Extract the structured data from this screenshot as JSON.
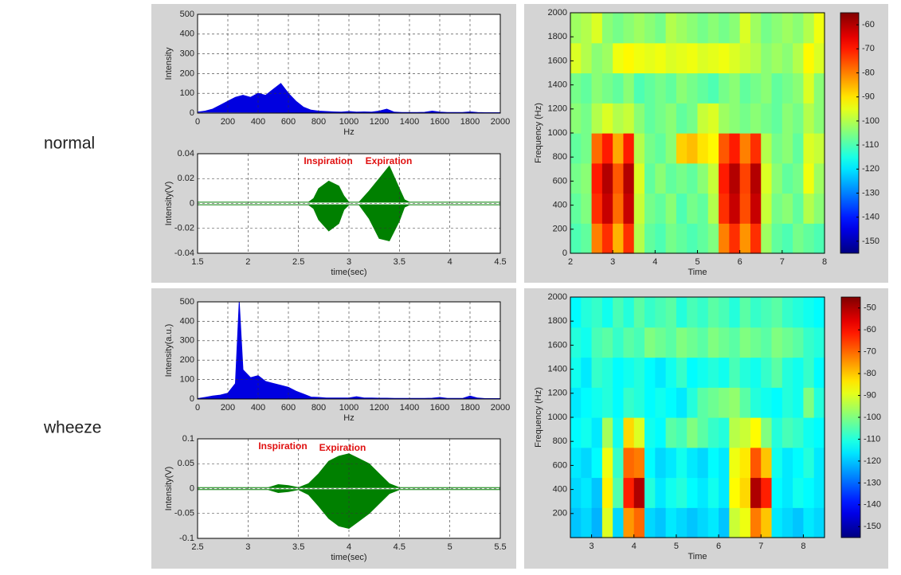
{
  "row_labels": [
    "normal",
    "wheeze"
  ],
  "chart_data": [
    {
      "type": "spectrum",
      "xlabel": "Hz",
      "ylabel": "Intensity",
      "color": "#0000e0",
      "grid": true,
      "xlim": [
        0,
        2000
      ],
      "xticks": [
        0,
        200,
        400,
        600,
        800,
        1000,
        1200,
        1400,
        1600,
        1800,
        2000
      ],
      "ylim": [
        0,
        500
      ],
      "yticks": [
        0,
        100,
        200,
        300,
        400,
        500
      ],
      "x": [
        0,
        50,
        100,
        150,
        200,
        250,
        300,
        350,
        400,
        450,
        500,
        550,
        600,
        650,
        700,
        750,
        800,
        850,
        900,
        950,
        1000,
        1050,
        1100,
        1150,
        1200,
        1250,
        1300,
        1350,
        1400,
        1450,
        1500,
        1550,
        1600,
        1650,
        1700,
        1750,
        1800,
        1850,
        1900,
        1950,
        2000
      ],
      "values": [
        5,
        10,
        20,
        40,
        60,
        80,
        90,
        80,
        100,
        90,
        120,
        150,
        100,
        60,
        30,
        15,
        10,
        8,
        6,
        5,
        8,
        5,
        6,
        5,
        10,
        20,
        5,
        3,
        3,
        3,
        4,
        10,
        5,
        3,
        3,
        3,
        6,
        3,
        2,
        2,
        2
      ]
    },
    {
      "type": "envelope",
      "xlabel": "time(sec)",
      "ylabel": "Intensity(V)",
      "color": "#008000",
      "grid": true,
      "xlim": [
        1.5,
        4.5
      ],
      "xticks": [
        1.5,
        2,
        2.5,
        3,
        3.5,
        4,
        4.5
      ],
      "ylim": [
        -0.04,
        0.04
      ],
      "yticks": [
        -0.04,
        -0.02,
        0,
        0.02,
        0.04
      ],
      "annotations": [
        "Inspiration",
        "Expiration"
      ],
      "x": [
        1.5,
        2.0,
        2.5,
        2.6,
        2.65,
        2.7,
        2.8,
        2.9,
        2.95,
        3.0,
        3.1,
        3.2,
        3.3,
        3.4,
        3.5,
        3.55,
        3.6,
        4.0,
        4.5
      ],
      "upper": [
        0.001,
        0.001,
        0.001,
        0.001,
        0.004,
        0.012,
        0.018,
        0.014,
        0.006,
        0.001,
        0.001,
        0.01,
        0.02,
        0.03,
        0.012,
        0.003,
        0.001,
        0.001,
        0.001
      ],
      "lower": [
        -0.001,
        -0.001,
        -0.001,
        -0.001,
        -0.004,
        -0.013,
        -0.022,
        -0.016,
        -0.005,
        -0.001,
        -0.001,
        -0.012,
        -0.028,
        -0.03,
        -0.014,
        -0.003,
        -0.001,
        -0.001,
        -0.001
      ]
    },
    {
      "type": "heatmap",
      "xlabel": "Time",
      "ylabel": "Frequency (Hz)",
      "colormap": "jet",
      "grid": false,
      "xlim": [
        2,
        8
      ],
      "xticks": [
        2,
        3,
        4,
        5,
        6,
        7,
        8
      ],
      "ylim": [
        0,
        2000
      ],
      "yticks": [
        0,
        200,
        400,
        600,
        800,
        1000,
        1200,
        1400,
        1600,
        1800,
        2000
      ],
      "clim": [
        -155,
        -55
      ],
      "cticks": [
        -60,
        -70,
        -80,
        -90,
        -100,
        -110,
        -120,
        -130,
        -140,
        -150
      ],
      "z": [
        [
          -110,
          -108,
          -80,
          -72,
          -85,
          -72,
          -100,
          -108,
          -110,
          -106,
          -108,
          -110,
          -108,
          -105,
          -80,
          -72,
          -82,
          -72,
          -102,
          -108,
          -110,
          -106,
          -108,
          -110
        ],
        [
          -108,
          -105,
          -72,
          -62,
          -78,
          -62,
          -98,
          -106,
          -108,
          -104,
          -110,
          -106,
          -108,
          -100,
          -72,
          -62,
          -75,
          -62,
          -98,
          -106,
          -104,
          -108,
          -100,
          -104
        ],
        [
          -106,
          -104,
          -70,
          -60,
          -76,
          -60,
          -96,
          -108,
          -104,
          -108,
          -106,
          -108,
          -104,
          -98,
          -70,
          -60,
          -74,
          -60,
          -96,
          -104,
          -108,
          -106,
          -94,
          -102
        ],
        [
          -108,
          -106,
          -78,
          -70,
          -84,
          -70,
          -100,
          -106,
          -108,
          -104,
          -88,
          -86,
          -90,
          -92,
          -76,
          -70,
          -80,
          -72,
          -100,
          -106,
          -104,
          -108,
          -96,
          -98
        ],
        [
          -104,
          -106,
          -100,
          -96,
          -100,
          -98,
          -104,
          -108,
          -106,
          -104,
          -108,
          -106,
          -98,
          -96,
          -102,
          -104,
          -106,
          -104,
          -106,
          -108,
          -104,
          -106,
          -100,
          -104
        ],
        [
          -106,
          -108,
          -104,
          -106,
          -108,
          -104,
          -110,
          -108,
          -106,
          -108,
          -104,
          -106,
          -108,
          -110,
          -106,
          -104,
          -108,
          -106,
          -104,
          -108,
          -106,
          -104,
          -96,
          -104
        ],
        [
          -96,
          -100,
          -104,
          -102,
          -94,
          -92,
          -94,
          -95,
          -94,
          -96,
          -95,
          -94,
          -96,
          -95,
          -94,
          -96,
          -98,
          -100,
          -104,
          -102,
          -104,
          -100,
          -92,
          -96
        ],
        [
          -102,
          -100,
          -96,
          -104,
          -106,
          -104,
          -102,
          -104,
          -106,
          -100,
          -102,
          -104,
          -106,
          -104,
          -106,
          -104,
          -96,
          -102,
          -106,
          -104,
          -102,
          -104,
          -100,
          -94
        ]
      ]
    },
    {
      "type": "spectrum",
      "xlabel": "Hz",
      "ylabel": "Intensity(a.u.)",
      "color": "#0000e0",
      "grid": true,
      "xlim": [
        0,
        2000
      ],
      "xticks": [
        0,
        200,
        400,
        600,
        800,
        1000,
        1200,
        1400,
        1600,
        1800,
        2000
      ],
      "ylim": [
        0,
        500
      ],
      "yticks": [
        0,
        100,
        200,
        300,
        400,
        500
      ],
      "x": [
        0,
        50,
        100,
        150,
        200,
        250,
        275,
        300,
        350,
        400,
        450,
        500,
        550,
        600,
        650,
        700,
        750,
        800,
        850,
        900,
        950,
        1000,
        1050,
        1100,
        1150,
        1200,
        1250,
        1300,
        1350,
        1400,
        1450,
        1500,
        1550,
        1600,
        1650,
        1700,
        1750,
        1800,
        1850,
        1900,
        1950,
        2000
      ],
      "values": [
        2,
        8,
        15,
        20,
        30,
        80,
        500,
        150,
        110,
        120,
        90,
        80,
        70,
        60,
        40,
        25,
        10,
        8,
        5,
        5,
        5,
        5,
        12,
        5,
        5,
        4,
        4,
        3,
        3,
        3,
        3,
        3,
        4,
        8,
        3,
        3,
        3,
        15,
        5,
        2,
        2,
        2
      ]
    },
    {
      "type": "envelope",
      "xlabel": "time(sec)",
      "ylabel": "Intensity(V)",
      "color": "#008000",
      "grid": true,
      "xlim": [
        2.5,
        5.5
      ],
      "xticks": [
        2.5,
        3,
        3.5,
        4,
        4.5,
        5,
        5.5
      ],
      "ylim": [
        -0.1,
        0.1
      ],
      "yticks": [
        -0.1,
        -0.05,
        0,
        0.05,
        0.1
      ],
      "annotations": [
        "Inspiration",
        "Expiration"
      ],
      "x": [
        2.5,
        3.0,
        3.2,
        3.3,
        3.4,
        3.5,
        3.6,
        3.7,
        3.8,
        3.9,
        4.0,
        4.1,
        4.2,
        4.3,
        4.4,
        4.5,
        5.0,
        5.5
      ],
      "upper": [
        0.002,
        0.002,
        0.002,
        0.008,
        0.006,
        0.002,
        0.01,
        0.03,
        0.055,
        0.065,
        0.07,
        0.06,
        0.05,
        0.03,
        0.01,
        0.002,
        0.002,
        0.002
      ],
      "lower": [
        -0.002,
        -0.002,
        -0.002,
        -0.008,
        -0.006,
        -0.002,
        -0.012,
        -0.035,
        -0.06,
        -0.075,
        -0.08,
        -0.065,
        -0.05,
        -0.03,
        -0.01,
        -0.002,
        -0.002,
        -0.002
      ]
    },
    {
      "type": "heatmap",
      "xlabel": "Time",
      "ylabel": "Frequency (Hz)",
      "colormap": "jet",
      "grid": false,
      "xlim": [
        2.5,
        8.5
      ],
      "xticks": [
        3,
        4,
        5,
        6,
        7,
        8
      ],
      "ylim": [
        0,
        2000
      ],
      "yticks": [
        200,
        400,
        600,
        800,
        1000,
        1200,
        1400,
        1600,
        1800,
        2000
      ],
      "clim": [
        -155,
        -45
      ],
      "cticks": [
        -50,
        -60,
        -70,
        -80,
        -90,
        -100,
        -110,
        -120,
        -130,
        -140,
        -150
      ],
      "z": [
        [
          -120,
          -118,
          -122,
          -90,
          -118,
          -75,
          -70,
          -118,
          -120,
          -116,
          -118,
          -120,
          -118,
          -116,
          -120,
          -92,
          -88,
          -72,
          -80,
          -116,
          -118,
          -120,
          -116,
          -118
        ],
        [
          -118,
          -116,
          -120,
          -85,
          -105,
          -62,
          -50,
          -110,
          -116,
          -112,
          -110,
          -114,
          -116,
          -112,
          -116,
          -86,
          -82,
          -50,
          -62,
          -114,
          -116,
          -112,
          -114,
          -116
        ],
        [
          -116,
          -118,
          -114,
          -88,
          -108,
          -70,
          -72,
          -114,
          -118,
          -116,
          -112,
          -116,
          -118,
          -114,
          -116,
          -88,
          -84,
          -68,
          -80,
          -112,
          -116,
          -114,
          -110,
          -116
        ],
        [
          -114,
          -112,
          -116,
          -96,
          -112,
          -82,
          -90,
          -112,
          -114,
          -104,
          -106,
          -100,
          -104,
          -108,
          -110,
          -94,
          -92,
          -86,
          -100,
          -110,
          -106,
          -108,
          -112,
          -114
        ],
        [
          -116,
          -114,
          -112,
          -110,
          -114,
          -108,
          -110,
          -114,
          -112,
          -114,
          -116,
          -110,
          -104,
          -102,
          -100,
          -98,
          -104,
          -110,
          -112,
          -114,
          -110,
          -112,
          -100,
          -110
        ],
        [
          -112,
          -116,
          -108,
          -110,
          -114,
          -112,
          -110,
          -114,
          -116,
          -112,
          -108,
          -114,
          -112,
          -110,
          -112,
          -106,
          -110,
          -112,
          -108,
          -104,
          -110,
          -112,
          -108,
          -114
        ],
        [
          -110,
          -112,
          -106,
          -104,
          -108,
          -104,
          -106,
          -100,
          -102,
          -104,
          -100,
          -102,
          -104,
          -100,
          -102,
          -104,
          -100,
          -102,
          -104,
          -100,
          -102,
          -104,
          -108,
          -110
        ],
        [
          -114,
          -110,
          -108,
          -112,
          -106,
          -110,
          -104,
          -108,
          -106,
          -104,
          -110,
          -106,
          -108,
          -104,
          -106,
          -110,
          -104,
          -108,
          -106,
          -104,
          -108,
          -110,
          -112,
          -114
        ]
      ]
    }
  ]
}
